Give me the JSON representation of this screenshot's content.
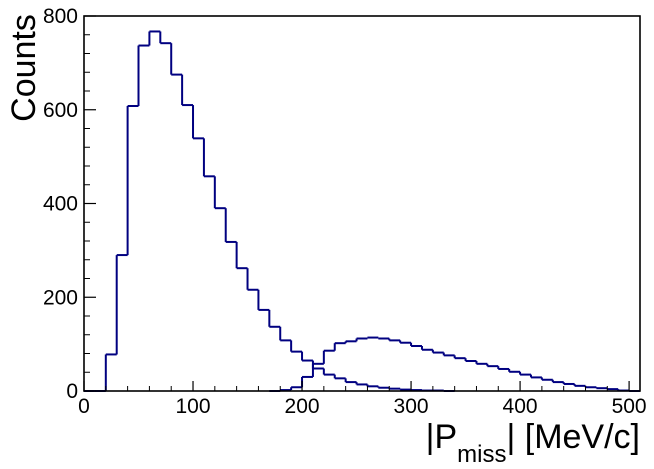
{
  "chart_data": {
    "type": "histogram",
    "title": "",
    "xlabel": {
      "main_left": "|P",
      "subscript": "miss",
      "main_right": "| [MeV/c]"
    },
    "ylabel": "Counts",
    "xlim": [
      0,
      510
    ],
    "ylim": [
      0,
      800
    ],
    "grid": false,
    "legend": null,
    "x_ticks": [
      {
        "value": 0,
        "label": "0"
      },
      {
        "value": 100,
        "label": "100"
      },
      {
        "value": 200,
        "label": "200"
      },
      {
        "value": 300,
        "label": "300"
      },
      {
        "value": 400,
        "label": "400"
      },
      {
        "value": 500,
        "label": "500"
      }
    ],
    "y_ticks": [
      {
        "value": 0,
        "label": "0"
      },
      {
        "value": 200,
        "label": "200"
      },
      {
        "value": 400,
        "label": "400"
      },
      {
        "value": 600,
        "label": "600"
      },
      {
        "value": 800,
        "label": "800"
      }
    ],
    "bin_width": 10,
    "series": [
      {
        "color": "#000080",
        "bins": [
          {
            "x0": 0,
            "x1": 10,
            "y": 0
          },
          {
            "x0": 10,
            "x1": 20,
            "y": 0
          },
          {
            "x0": 20,
            "x1": 30,
            "y": 78
          },
          {
            "x0": 30,
            "x1": 40,
            "y": 290
          },
          {
            "x0": 40,
            "x1": 50,
            "y": 608
          },
          {
            "x0": 50,
            "x1": 60,
            "y": 737
          },
          {
            "x0": 60,
            "x1": 70,
            "y": 767
          },
          {
            "x0": 70,
            "x1": 80,
            "y": 742
          },
          {
            "x0": 80,
            "x1": 90,
            "y": 675
          },
          {
            "x0": 90,
            "x1": 100,
            "y": 610
          },
          {
            "x0": 100,
            "x1": 110,
            "y": 539
          },
          {
            "x0": 110,
            "x1": 120,
            "y": 458
          },
          {
            "x0": 120,
            "x1": 130,
            "y": 390
          },
          {
            "x0": 130,
            "x1": 140,
            "y": 318
          },
          {
            "x0": 140,
            "x1": 150,
            "y": 262
          },
          {
            "x0": 150,
            "x1": 160,
            "y": 216
          },
          {
            "x0": 160,
            "x1": 170,
            "y": 173
          },
          {
            "x0": 170,
            "x1": 180,
            "y": 137
          },
          {
            "x0": 180,
            "x1": 190,
            "y": 108
          },
          {
            "x0": 190,
            "x1": 200,
            "y": 84
          },
          {
            "x0": 200,
            "x1": 210,
            "y": 65
          },
          {
            "x0": 210,
            "x1": 220,
            "y": 48
          },
          {
            "x0": 220,
            "x1": 230,
            "y": 35
          },
          {
            "x0": 230,
            "x1": 240,
            "y": 27
          },
          {
            "x0": 240,
            "x1": 250,
            "y": 19
          },
          {
            "x0": 250,
            "x1": 260,
            "y": 14
          },
          {
            "x0": 260,
            "x1": 270,
            "y": 10
          },
          {
            "x0": 270,
            "x1": 280,
            "y": 7
          },
          {
            "x0": 280,
            "x1": 290,
            "y": 5
          },
          {
            "x0": 290,
            "x1": 300,
            "y": 3
          },
          {
            "x0": 300,
            "x1": 310,
            "y": 2
          },
          {
            "x0": 310,
            "x1": 320,
            "y": 1
          },
          {
            "x0": 320,
            "x1": 330,
            "y": 1
          },
          {
            "x0": 330,
            "x1": 340,
            "y": 0
          }
        ]
      },
      {
        "color": "#000080",
        "bins": [
          {
            "x0": 170,
            "x1": 180,
            "y": 0
          },
          {
            "x0": 180,
            "x1": 190,
            "y": 2
          },
          {
            "x0": 190,
            "x1": 200,
            "y": 8
          },
          {
            "x0": 200,
            "x1": 210,
            "y": 30
          },
          {
            "x0": 210,
            "x1": 220,
            "y": 58
          },
          {
            "x0": 220,
            "x1": 230,
            "y": 86
          },
          {
            "x0": 230,
            "x1": 240,
            "y": 102
          },
          {
            "x0": 240,
            "x1": 250,
            "y": 106
          },
          {
            "x0": 250,
            "x1": 260,
            "y": 112
          },
          {
            "x0": 260,
            "x1": 270,
            "y": 114
          },
          {
            "x0": 270,
            "x1": 280,
            "y": 112
          },
          {
            "x0": 280,
            "x1": 290,
            "y": 108
          },
          {
            "x0": 290,
            "x1": 300,
            "y": 103
          },
          {
            "x0": 300,
            "x1": 310,
            "y": 96
          },
          {
            "x0": 310,
            "x1": 320,
            "y": 88
          },
          {
            "x0": 320,
            "x1": 330,
            "y": 82
          },
          {
            "x0": 330,
            "x1": 340,
            "y": 76
          },
          {
            "x0": 340,
            "x1": 350,
            "y": 70
          },
          {
            "x0": 350,
            "x1": 360,
            "y": 64
          },
          {
            "x0": 360,
            "x1": 370,
            "y": 58
          },
          {
            "x0": 370,
            "x1": 380,
            "y": 53
          },
          {
            "x0": 380,
            "x1": 390,
            "y": 47
          },
          {
            "x0": 390,
            "x1": 400,
            "y": 41
          },
          {
            "x0": 400,
            "x1": 410,
            "y": 35
          },
          {
            "x0": 410,
            "x1": 420,
            "y": 29
          },
          {
            "x0": 420,
            "x1": 430,
            "y": 24
          },
          {
            "x0": 430,
            "x1": 440,
            "y": 19
          },
          {
            "x0": 440,
            "x1": 450,
            "y": 15
          },
          {
            "x0": 450,
            "x1": 460,
            "y": 11
          },
          {
            "x0": 460,
            "x1": 470,
            "y": 8
          },
          {
            "x0": 470,
            "x1": 480,
            "y": 6
          },
          {
            "x0": 480,
            "x1": 490,
            "y": 4
          },
          {
            "x0": 490,
            "x1": 500,
            "y": 1
          },
          {
            "x0": 500,
            "x1": 510,
            "y": 0
          }
        ]
      }
    ]
  }
}
